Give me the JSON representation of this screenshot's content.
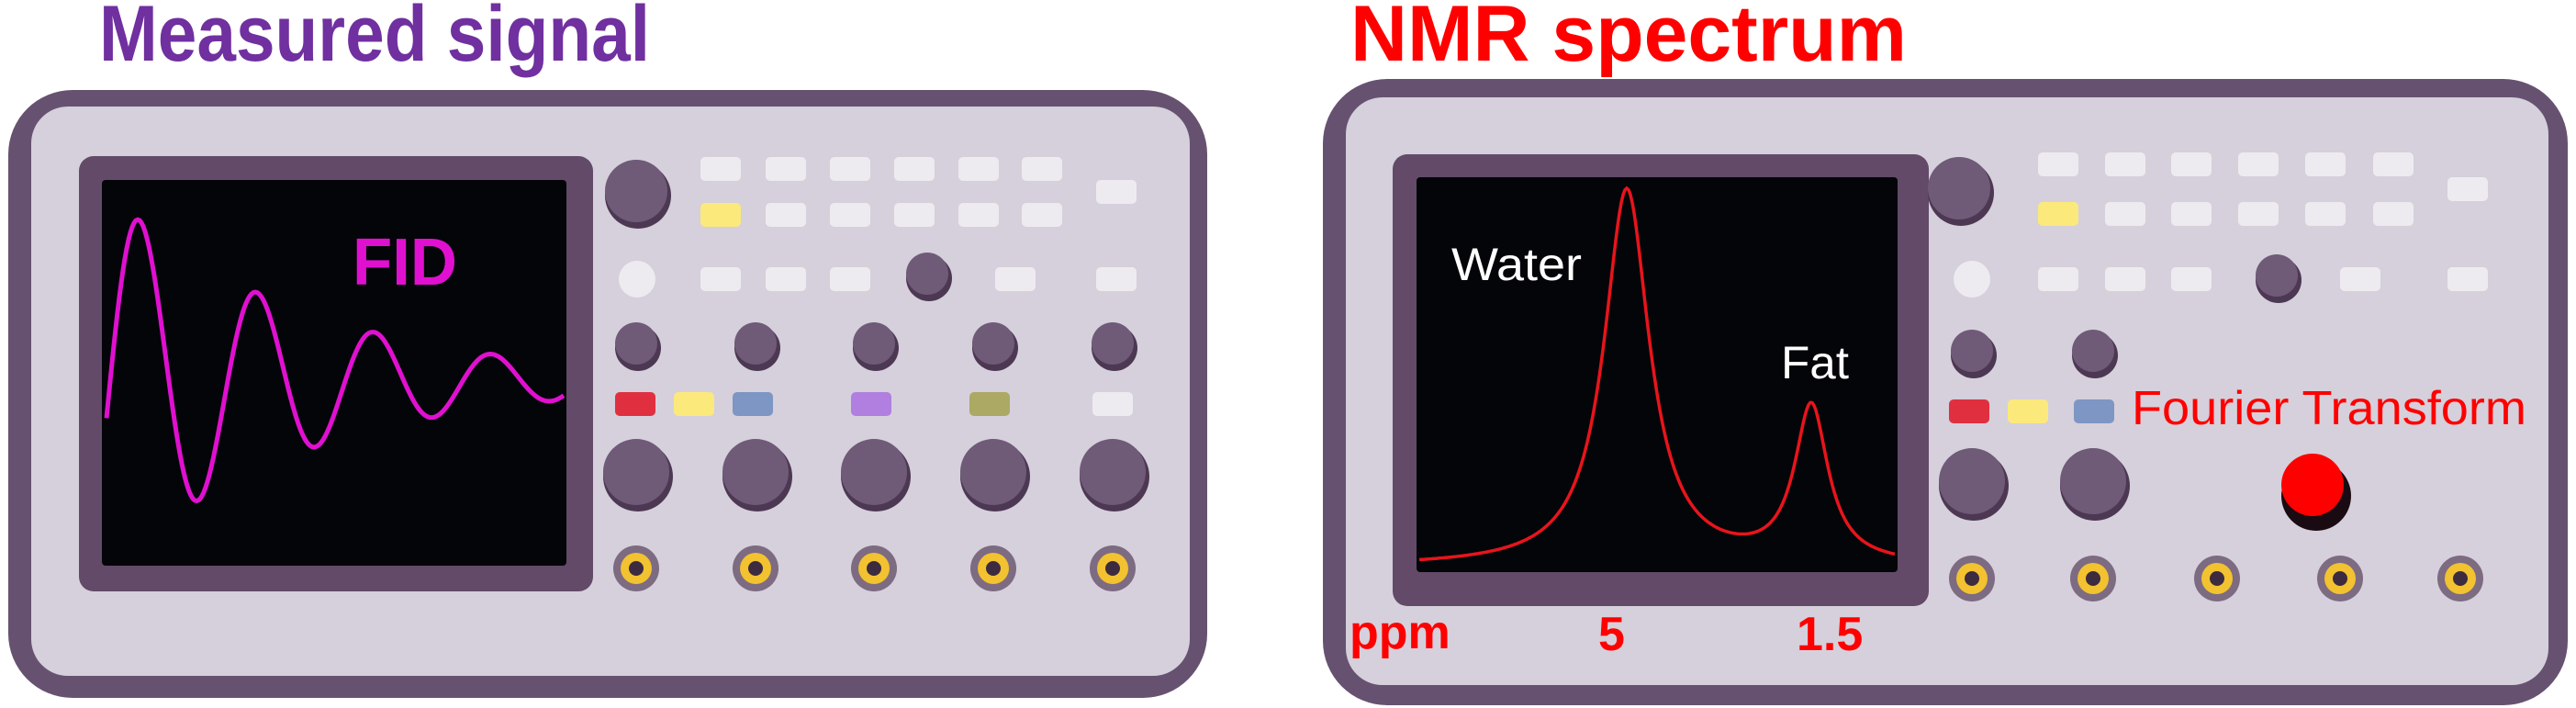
{
  "left_panel": {
    "title": "Measured signal",
    "screen_label": "FID",
    "title_color": "#7030a0",
    "signal_color": "#e010d0",
    "indicator_colors": [
      "#e0303f",
      "#fbe97c",
      "#7d96c4",
      "#b07fe0",
      "#aba963",
      "#eeebf0"
    ]
  },
  "right_panel": {
    "title": "NMR spectrum",
    "title_color": "#ff0000",
    "peak_labels": [
      "Water",
      "Fat"
    ],
    "axis": {
      "unit": "ppm",
      "ticks": [
        "5",
        "1.5"
      ]
    },
    "action_label": "Fourier Transform",
    "action_button_color": "#ff0000",
    "indicator_colors": [
      "#e0303f",
      "#fbe97c",
      "#7d96c4"
    ]
  },
  "device_colors": {
    "frame": "#665270",
    "panel": "#d5d0db",
    "bezel": "#624a68",
    "screen": "#030508",
    "knob": "#6f5a78",
    "key": "#eeebf0",
    "jack_ring": "#f2c230"
  }
}
